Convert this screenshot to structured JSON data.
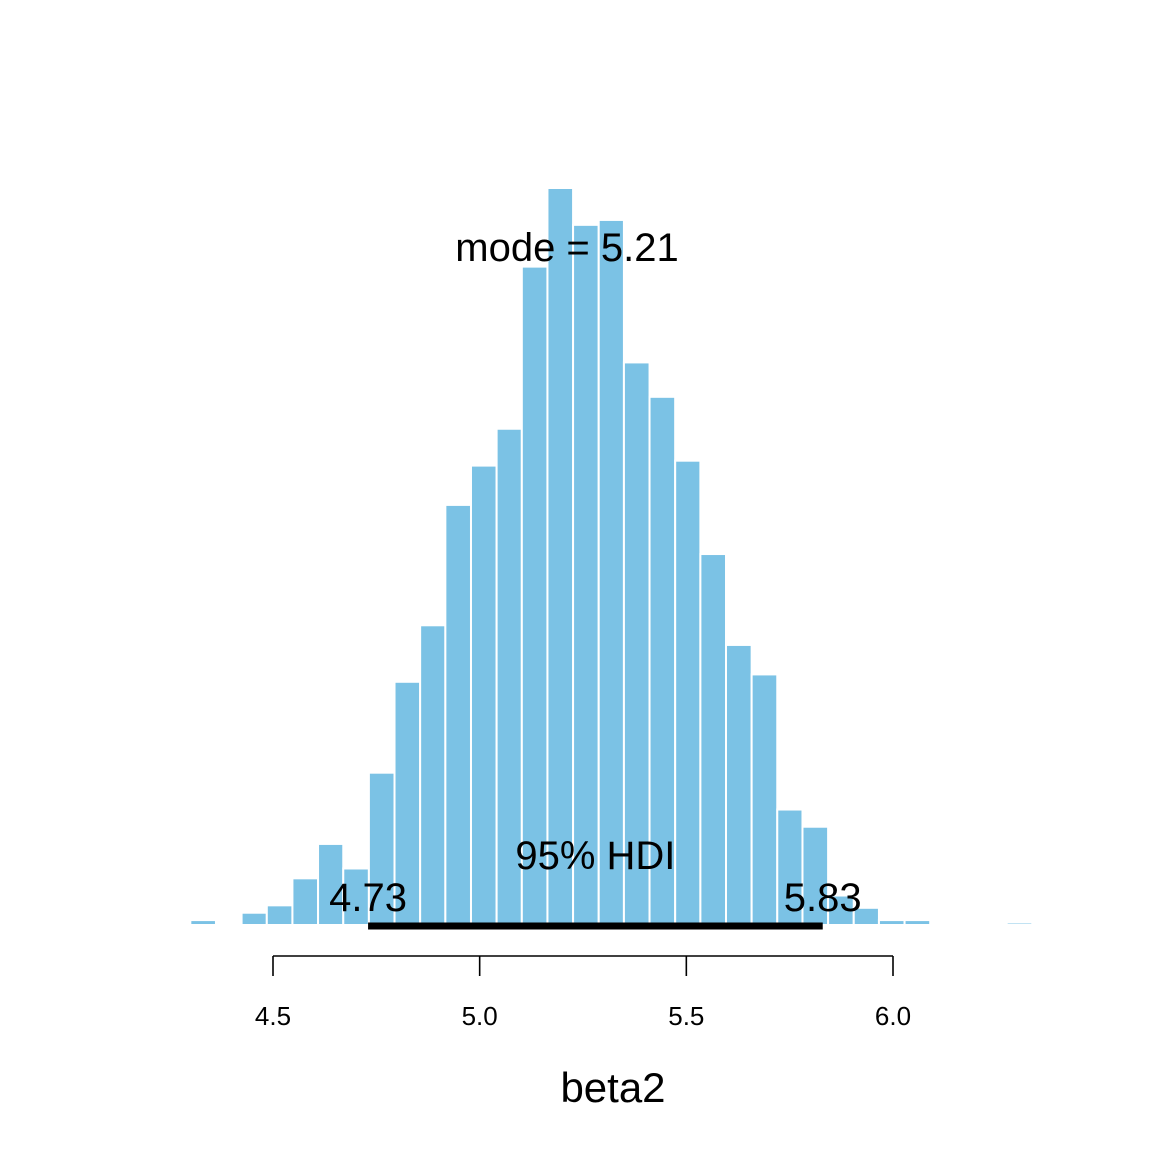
{
  "chart_data": {
    "type": "bar",
    "subtype": "histogram",
    "xlabel": "beta2",
    "ylabel": "",
    "xlim": [
      4.3,
      6.3
    ],
    "x_ticks": [
      4.5,
      5.0,
      5.5,
      6.0
    ],
    "x_tick_labels": [
      "4.5",
      "5.0",
      "5.5",
      "6.0"
    ],
    "y_axis_shown": false,
    "grid": false,
    "bar_color": "#7BC2E5",
    "bar_edge_color": "#FFFFFF",
    "bin_width": 0.0617,
    "bins": [
      {
        "start": 4.3,
        "end": 4.362,
        "count": 2
      },
      {
        "start": 4.424,
        "end": 4.485,
        "count": 5
      },
      {
        "start": 4.485,
        "end": 4.547,
        "count": 8
      },
      {
        "start": 4.547,
        "end": 4.609,
        "count": 19
      },
      {
        "start": 4.609,
        "end": 4.67,
        "count": 33
      },
      {
        "start": 4.67,
        "end": 4.732,
        "count": 23
      },
      {
        "start": 4.732,
        "end": 4.794,
        "count": 62
      },
      {
        "start": 4.794,
        "end": 4.856,
        "count": 99
      },
      {
        "start": 4.856,
        "end": 4.917,
        "count": 122
      },
      {
        "start": 4.917,
        "end": 4.979,
        "count": 171
      },
      {
        "start": 4.979,
        "end": 5.041,
        "count": 187
      },
      {
        "start": 5.041,
        "end": 5.102,
        "count": 202
      },
      {
        "start": 5.102,
        "end": 5.164,
        "count": 268
      },
      {
        "start": 5.164,
        "end": 5.226,
        "count": 300
      },
      {
        "start": 5.226,
        "end": 5.288,
        "count": 285
      },
      {
        "start": 5.288,
        "end": 5.349,
        "count": 287
      },
      {
        "start": 5.349,
        "end": 5.411,
        "count": 229
      },
      {
        "start": 5.411,
        "end": 5.473,
        "count": 215
      },
      {
        "start": 5.473,
        "end": 5.534,
        "count": 189
      },
      {
        "start": 5.534,
        "end": 5.596,
        "count": 151
      },
      {
        "start": 5.596,
        "end": 5.658,
        "count": 114
      },
      {
        "start": 5.658,
        "end": 5.72,
        "count": 102
      },
      {
        "start": 5.72,
        "end": 5.781,
        "count": 47
      },
      {
        "start": 5.781,
        "end": 5.843,
        "count": 40
      },
      {
        "start": 5.843,
        "end": 5.905,
        "count": 12
      },
      {
        "start": 5.905,
        "end": 5.966,
        "count": 7
      },
      {
        "start": 5.966,
        "end": 6.028,
        "count": 2
      },
      {
        "start": 6.028,
        "end": 6.09,
        "count": 2
      },
      {
        "start": 6.275,
        "end": 6.337,
        "count": 1
      }
    ],
    "mode_label": "mode = 5.21",
    "hdi": {
      "label": "95% HDI",
      "low": 4.73,
      "high": 5.83,
      "low_label": "4.73",
      "high_label": "5.83",
      "line_color": "#000000"
    }
  }
}
